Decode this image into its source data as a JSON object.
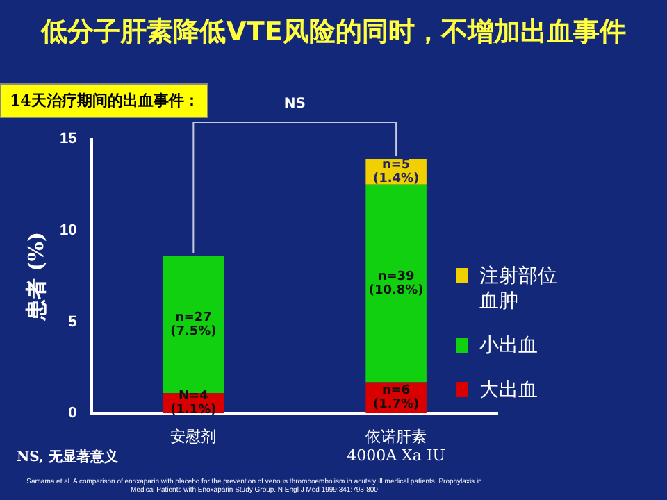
{
  "chart_data": {
    "type": "bar",
    "stacked": true,
    "title": "低分子肝素降低VTE风险的同时，不增加出血事件",
    "ylabel": "患者 (%)",
    "categories": [
      "安慰剂",
      "依诺肝素\n4000A Xa IU"
    ],
    "series": [
      {
        "name": "大出血",
        "color": "#d80000",
        "values": [
          1.1,
          1.7
        ],
        "value_labels": [
          "N=4\n(1.1%)",
          "n=6\n(1.7%)"
        ]
      },
      {
        "name": "小出血",
        "color": "#10d010",
        "values": [
          7.5,
          10.8
        ],
        "value_labels": [
          "n=27\n(7.5%)",
          "n=39\n(10.8%)"
        ]
      },
      {
        "name": "注射部位血肿",
        "color": "#f0d000",
        "values": [
          null,
          1.4
        ],
        "value_labels": [
          null,
          "n=5\n(1.4%)"
        ]
      }
    ],
    "ylim": [
      0,
      15
    ],
    "yticks": [
      0,
      5,
      10,
      15
    ],
    "grid": false,
    "legend": "right",
    "annotations": [
      "14天治疗期间的出血事件：",
      "NS",
      "NS, 无显著意义",
      "Samama et al. A comparison of enoxaparin with placebo for the prevention of venous thromboembolism in acutely ill medical patients. Prophylaxis in Medical Patients with Enoxaparin Study Group. N Engl J Med 1999;341:793-800"
    ]
  }
}
